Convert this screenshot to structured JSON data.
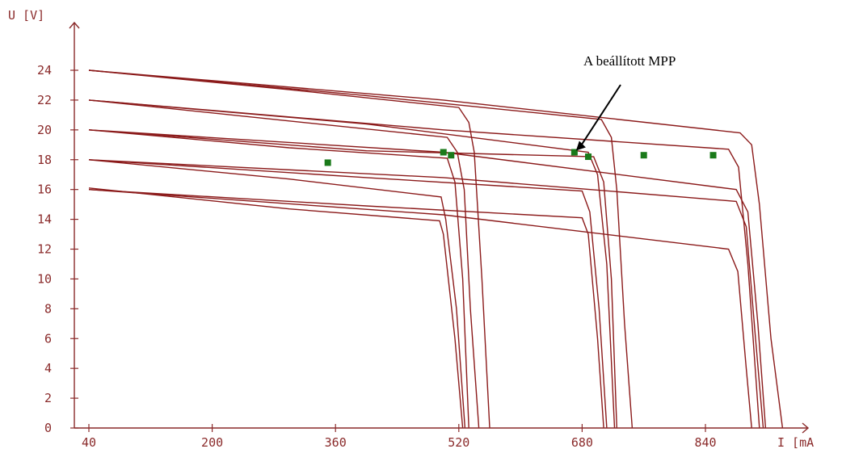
{
  "chart_data": {
    "type": "line",
    "title": "",
    "xlabel": "I [mA",
    "ylabel": "U [V]",
    "xlim": [
      40,
      1000
    ],
    "ylim": [
      0,
      26
    ],
    "x_ticks": [
      40,
      200,
      360,
      520,
      680,
      840
    ],
    "y_ticks": [
      0,
      2,
      4,
      6,
      8,
      10,
      12,
      14,
      16,
      18,
      20,
      22,
      24
    ],
    "grid": false,
    "colors": {
      "curve": "#8b1a1a",
      "mpp_marker": "#1a7a1a",
      "axis": "#8a2a2a",
      "annotation": "#000000"
    },
    "series": [
      {
        "knee": 540,
        "short": 515,
        "points": [
          [
            40,
            24.0
          ],
          [
            300,
            22.7
          ],
          [
            520,
            21.5
          ],
          [
            533,
            20.5
          ],
          [
            540,
            18.5
          ],
          [
            550,
            10.0
          ],
          [
            560,
            0
          ]
        ]
      },
      {
        "knee": 535,
        "short": 512,
        "points": [
          [
            40,
            22.0
          ],
          [
            300,
            20.6
          ],
          [
            505,
            19.5
          ],
          [
            518,
            18.5
          ],
          [
            527,
            16.0
          ],
          [
            535,
            8.0
          ],
          [
            546,
            0
          ]
        ]
      },
      {
        "knee": 525,
        "short": 510,
        "points": [
          [
            40,
            20.0
          ],
          [
            300,
            18.8
          ],
          [
            505,
            18.1
          ],
          [
            515,
            16.5
          ],
          [
            525,
            10.0
          ],
          [
            533,
            0
          ]
        ]
      },
      {
        "knee": 520,
        "short": 508,
        "points": [
          [
            40,
            18.0
          ],
          [
            300,
            16.7
          ],
          [
            497,
            15.5
          ],
          [
            503,
            14.0
          ],
          [
            517,
            8.0
          ],
          [
            528,
            0
          ]
        ]
      },
      {
        "knee": 515,
        "short": 505,
        "points": [
          [
            40,
            16.1
          ],
          [
            300,
            14.7
          ],
          [
            495,
            13.9
          ],
          [
            500,
            13.0
          ],
          [
            515,
            6.0
          ],
          [
            525,
            0
          ]
        ]
      },
      {
        "knee": 720,
        "short": 700,
        "points": [
          [
            40,
            24.0
          ],
          [
            400,
            22.3
          ],
          [
            705,
            20.7
          ],
          [
            718,
            19.5
          ],
          [
            725,
            16.0
          ],
          [
            735,
            7.0
          ],
          [
            745,
            0
          ]
        ]
      },
      {
        "knee": 715,
        "short": 695,
        "points": [
          [
            40,
            22.0
          ],
          [
            400,
            20.4
          ],
          [
            688,
            18.5
          ],
          [
            700,
            17.0
          ],
          [
            712,
            11.0
          ],
          [
            722,
            0
          ]
        ]
      },
      {
        "knee": 710,
        "short": 690,
        "points": [
          [
            40,
            20.0
          ],
          [
            400,
            18.6
          ],
          [
            695,
            18.2
          ],
          [
            708,
            16.5
          ],
          [
            718,
            10.0
          ],
          [
            725,
            0
          ]
        ]
      },
      {
        "knee": 705,
        "short": 685,
        "points": [
          [
            40,
            18.0
          ],
          [
            400,
            16.8
          ],
          [
            680,
            15.9
          ],
          [
            690,
            14.5
          ],
          [
            702,
            8.0
          ],
          [
            712,
            0
          ]
        ]
      },
      {
        "knee": 700,
        "short": 680,
        "points": [
          [
            40,
            16.0
          ],
          [
            400,
            14.9
          ],
          [
            680,
            14.1
          ],
          [
            688,
            13.0
          ],
          [
            700,
            6.0
          ],
          [
            708,
            0
          ]
        ]
      },
      {
        "knee": 910,
        "short": 885,
        "points": [
          [
            40,
            24.0
          ],
          [
            500,
            22.0
          ],
          [
            885,
            19.8
          ],
          [
            900,
            19.0
          ],
          [
            910,
            15.0
          ],
          [
            925,
            6.0
          ],
          [
            940,
            0
          ]
        ]
      },
      {
        "knee": 900,
        "short": 880,
        "points": [
          [
            40,
            22.0
          ],
          [
            500,
            20.0
          ],
          [
            870,
            18.7
          ],
          [
            883,
            17.5
          ],
          [
            895,
            11.0
          ],
          [
            910,
            0
          ]
        ]
      },
      {
        "knee": 895,
        "short": 875,
        "points": [
          [
            40,
            20.0
          ],
          [
            500,
            18.5
          ],
          [
            880,
            16.0
          ],
          [
            895,
            14.5
          ],
          [
            908,
            7.0
          ],
          [
            918,
            0
          ]
        ]
      },
      {
        "knee": 890,
        "short": 870,
        "points": [
          [
            40,
            18.0
          ],
          [
            500,
            16.8
          ],
          [
            880,
            15.2
          ],
          [
            893,
            13.5
          ],
          [
            905,
            6.0
          ],
          [
            915,
            0
          ]
        ]
      },
      {
        "knee": 885,
        "short": 865,
        "points": [
          [
            40,
            16.0
          ],
          [
            500,
            14.3
          ],
          [
            870,
            12.0
          ],
          [
            882,
            10.5
          ],
          [
            893,
            4.0
          ],
          [
            900,
            0
          ]
        ]
      }
    ],
    "mpp_points": [
      [
        350,
        17.8
      ],
      [
        500,
        18.5
      ],
      [
        510,
        18.3
      ],
      [
        670,
        18.5
      ],
      [
        688,
        18.2
      ],
      [
        760,
        18.3
      ],
      [
        850,
        18.3
      ]
    ],
    "annotation": {
      "text": "A beállított MPP",
      "target": [
        670,
        18.5
      ]
    }
  }
}
